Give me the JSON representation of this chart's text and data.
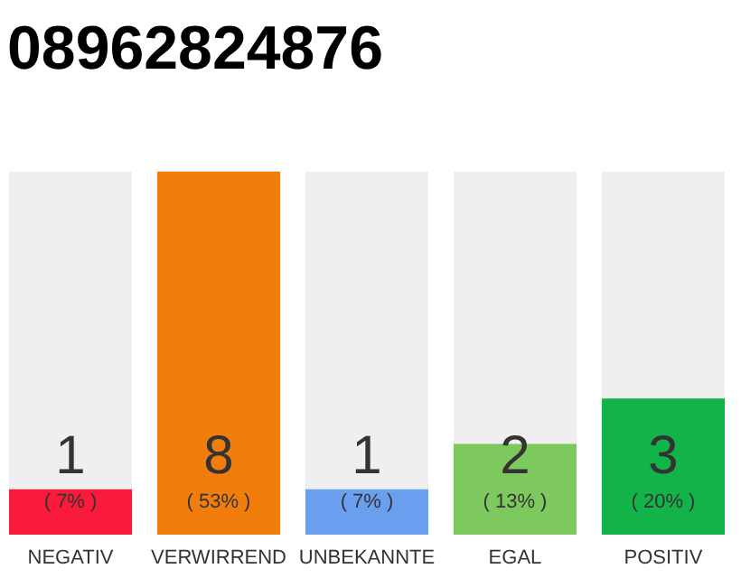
{
  "chart_data": {
    "type": "bar",
    "title": "08962824876",
    "categories": [
      "NEGATIV",
      "VERWIRREND",
      "UNBEKANNTE",
      "EGAL",
      "POSITIV"
    ],
    "values": [
      1,
      8,
      1,
      2,
      3
    ],
    "colors": [
      "#fa1a3c",
      "#f07d0c",
      "#6a9ff0",
      "#7dc95e",
      "#12b44a"
    ],
    "data_labels": true,
    "annotations": [
      "( 7% )",
      "( 53% )",
      "( 7% )",
      "( 13% )",
      "( 20% )"
    ]
  }
}
